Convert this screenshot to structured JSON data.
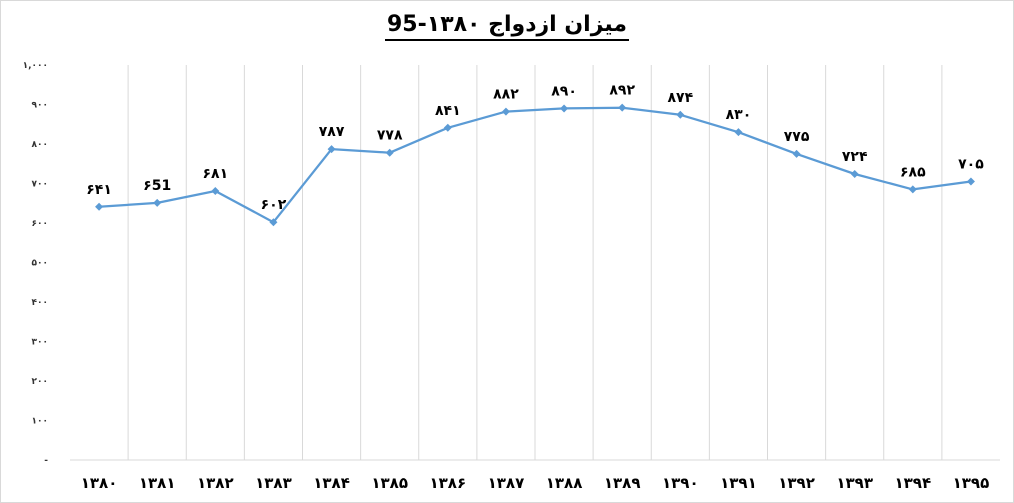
{
  "chart_data": {
    "type": "line",
    "title": "میزان ازدواج ۱۳۸۰-95",
    "xlabel": "",
    "ylabel": "",
    "categories": [
      "۱۳۸۰",
      "۱۳۸۱",
      "۱۳۸۲",
      "۱۳۸۳",
      "۱۳۸۴",
      "۱۳۸۵",
      "۱۳۸۶",
      "۱۳۸۷",
      "۱۳۸۸",
      "۱۳۸۹",
      "۱۳۹۰",
      "۱۳۹۱",
      "۱۳۹۲",
      "۱۳۹۳",
      "۱۳۹۴",
      "۱۳۹۵"
    ],
    "series": [
      {
        "values": [
          641,
          651,
          681,
          602,
          787,
          778,
          841,
          882,
          890,
          892,
          874,
          830,
          775,
          724,
          685,
          705
        ],
        "data_labels": [
          "۶۴۱",
          "۶51",
          "۶۸۱",
          "۶۰۲",
          "۷۸۷",
          "۷۷۸",
          "۸۴۱",
          "۸۸۲",
          "۸۹۰",
          "۸۹۲",
          "۸۷۴",
          "۸۳۰",
          "۷۷۵",
          "۷۲۴",
          "۶۸۵",
          "۷۰۵"
        ],
        "color": "#5b9bd5"
      }
    ],
    "ylim": [
      0,
      1000
    ],
    "yticks": [
      0,
      100,
      200,
      300,
      400,
      500,
      600,
      700,
      800,
      900,
      1000
    ],
    "ytick_labels": [
      "-",
      "۱۰۰",
      "۲۰۰",
      "۳۰۰",
      "۴۰۰",
      "۵۰۰",
      "۶۰۰",
      "۷۰۰",
      "۸۰۰",
      "۹۰۰",
      "۱,۰۰۰"
    ],
    "grid": "vertical",
    "legend": "none"
  }
}
